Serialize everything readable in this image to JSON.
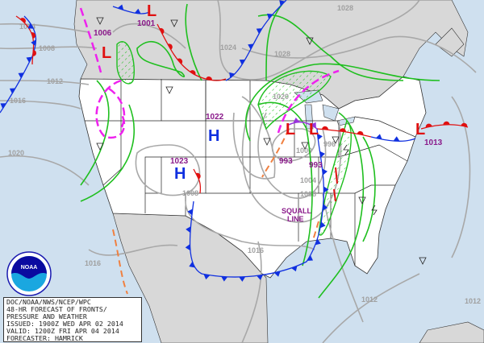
{
  "info_box": {
    "lines": [
      "DOC/NOAA/NWS/NCEP/WPC",
      "48-HR FORECAST OF FRONTS/",
      "PRESSURE AND WEATHER",
      "ISSUED: 1900Z WED APR 02 2014",
      "VALID: 1200Z FRI APR 04 2014",
      "FORECASTER: HAMRICK"
    ]
  },
  "logo": {
    "text": "NOAA"
  },
  "pressure_centers": [
    {
      "type": "L",
      "value": "1001"
    },
    {
      "type": "L",
      "value": "1006"
    },
    {
      "type": "L",
      "value": "993"
    },
    {
      "type": "L",
      "value": "993"
    },
    {
      "type": "L",
      "value": "1013"
    },
    {
      "type": "H",
      "value": "1022"
    },
    {
      "type": "H",
      "value": "1023"
    }
  ],
  "isobar_labels": [
    "1004",
    "1008",
    "1012",
    "1016",
    "1020",
    "1024",
    "1028",
    "1028",
    "1000",
    "996",
    "1004",
    "1008",
    "1016",
    "1012",
    "1012",
    "1016",
    "1020",
    "1008"
  ],
  "annotations": {
    "squall_line": [
      "SQUALL",
      "LINE"
    ]
  },
  "colors": {
    "ocean": "#cfe0ef",
    "foreign_land": "#d8d8d8",
    "us_land": "#ffffff",
    "cold_front": "#1030e0",
    "warm_front": "#e01010",
    "low": "#e01010",
    "high": "#1030e0",
    "trough": "#f08040",
    "dryline_or_other": "#ee22ee",
    "precip": "#1fbf1f",
    "pressure_value": "#8a1a8a"
  }
}
